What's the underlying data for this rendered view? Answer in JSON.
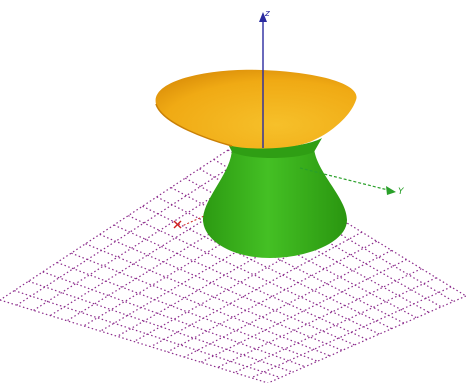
{
  "axes": {
    "z_label": "z",
    "y_label": "Y"
  },
  "colors": {
    "z_axis": "#2a2aa0",
    "y_axis": "#2aa02a",
    "x_axis": "#d02020",
    "grid": "#8b2a8b",
    "surface_inner": "#f2b21c",
    "surface_outer": "#3cb21c"
  },
  "surface": {
    "type": "hyperboloid of one sheet"
  }
}
